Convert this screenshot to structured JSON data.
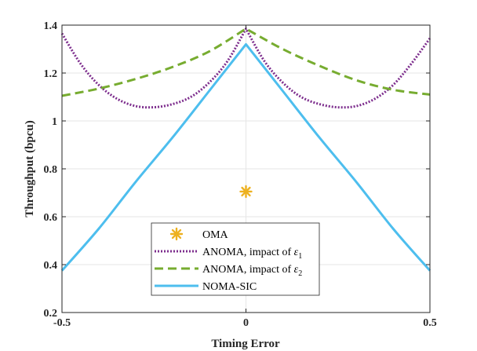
{
  "chart_data": {
    "type": "line",
    "xlabel": "Timing Error",
    "ylabel": "Throughput (bpcu)",
    "xlim": [
      -0.5,
      0.5
    ],
    "ylim": [
      0.2,
      1.4
    ],
    "xticks": [
      -0.5,
      0,
      0.5
    ],
    "xtick_labels": [
      "-0.5",
      "0",
      "0.5"
    ],
    "yticks": [
      0.2,
      0.4,
      0.6,
      0.8,
      1.0,
      1.2,
      1.4
    ],
    "ytick_labels": [
      "0.2",
      "0.4",
      "0.6",
      "0.8",
      "1",
      "1.2",
      "1.4"
    ],
    "grid": true,
    "legend_position": "bottom-center",
    "series": [
      {
        "name": "OMA",
        "style": "marker",
        "marker": "asterisk",
        "color": "#EDB120",
        "x": [
          0
        ],
        "y": [
          0.705
        ]
      },
      {
        "name": "ANOMA, impact of ε1",
        "legend_main": "ANOMA, impact of ",
        "legend_symbol": "ε",
        "legend_sub": "1",
        "style": "dotted",
        "color": "#7E2F8E",
        "x": [
          -0.5,
          -0.45,
          -0.4,
          -0.35,
          -0.3,
          -0.25,
          -0.2,
          -0.15,
          -0.1,
          -0.05,
          0,
          0.05,
          0.1,
          0.15,
          0.2,
          0.25,
          0.3,
          0.35,
          0.4,
          0.45,
          0.5
        ],
        "y": [
          1.365,
          1.24,
          1.15,
          1.092,
          1.062,
          1.057,
          1.07,
          1.1,
          1.16,
          1.25,
          1.385,
          1.25,
          1.16,
          1.1,
          1.07,
          1.057,
          1.062,
          1.092,
          1.15,
          1.24,
          1.345
        ]
      },
      {
        "name": "ANOMA, impact of ε2",
        "legend_main": "ANOMA, impact of ",
        "legend_symbol": "ε",
        "legend_sub": "2",
        "style": "dashed",
        "color": "#77AC30",
        "x": [
          -0.5,
          -0.4,
          -0.3,
          -0.2,
          -0.1,
          0,
          0.1,
          0.2,
          0.3,
          0.4,
          0.5
        ],
        "y": [
          1.105,
          1.135,
          1.175,
          1.225,
          1.29,
          1.385,
          1.3,
          1.23,
          1.17,
          1.13,
          1.11
        ]
      },
      {
        "name": "NOMA-SIC",
        "style": "solid",
        "color": "#4DBEEE",
        "x": [
          -0.5,
          -0.4,
          -0.3,
          -0.2,
          -0.1,
          0,
          0.1,
          0.2,
          0.3,
          0.4,
          0.5
        ],
        "y": [
          0.375,
          0.55,
          0.745,
          0.93,
          1.125,
          1.32,
          1.125,
          0.93,
          0.745,
          0.55,
          0.375
        ]
      }
    ]
  }
}
